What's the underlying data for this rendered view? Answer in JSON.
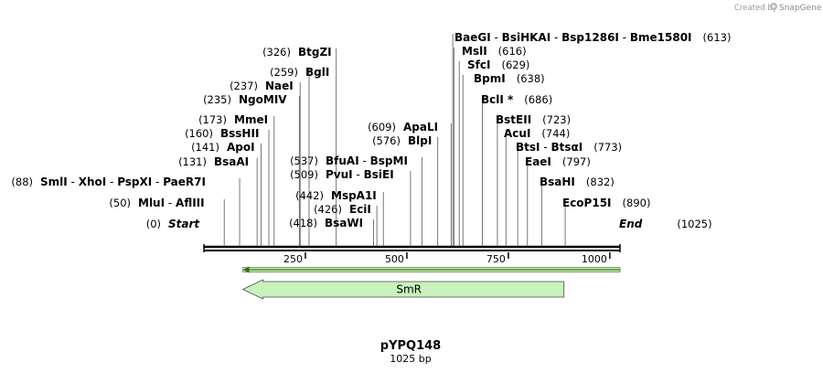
{
  "credit": {
    "prefix": "Created by",
    "brand": "SnapGene"
  },
  "plasmid": {
    "name": "pYPQ148",
    "length_label": "1025 bp",
    "length": 1025
  },
  "ruler": {
    "ticks": [
      250,
      500,
      750,
      1000
    ]
  },
  "sites": [
    {
      "id": "start",
      "pos": 0,
      "pos_label": "(0)",
      "names": [
        "Start"
      ],
      "italic": true
    },
    {
      "id": "mlui",
      "pos": 50,
      "pos_label": "(50)",
      "names": [
        "MluI",
        "AflIII"
      ]
    },
    {
      "id": "smli",
      "pos": 88,
      "pos_label": "(88)",
      "names": [
        "SmlI",
        "XhoI",
        "PspXI",
        "PaeR7I"
      ]
    },
    {
      "id": "bsaai",
      "pos": 131,
      "pos_label": "(131)",
      "names": [
        "BsaAI"
      ]
    },
    {
      "id": "apoi",
      "pos": 141,
      "pos_label": "(141)",
      "names": [
        "ApoI"
      ]
    },
    {
      "id": "bsshii",
      "pos": 160,
      "pos_label": "(160)",
      "names": [
        "BssHII"
      ]
    },
    {
      "id": "mmei",
      "pos": 173,
      "pos_label": "(173)",
      "names": [
        "MmeI"
      ]
    },
    {
      "id": "ngomiv",
      "pos": 235,
      "pos_label": "(235)",
      "names": [
        "NgoMIV"
      ]
    },
    {
      "id": "naei",
      "pos": 237,
      "pos_label": "(237)",
      "names": [
        "NaeI"
      ]
    },
    {
      "id": "bgli",
      "pos": 259,
      "pos_label": "(259)",
      "names": [
        "BglI"
      ]
    },
    {
      "id": "btgzi",
      "pos": 326,
      "pos_label": "(326)",
      "names": [
        "BtgZI"
      ]
    },
    {
      "id": "bsawi",
      "pos": 418,
      "pos_label": "(418)",
      "names": [
        "BsaWI"
      ]
    },
    {
      "id": "ecii",
      "pos": 426,
      "pos_label": "(426)",
      "names": [
        "EciI"
      ]
    },
    {
      "id": "mspa1i",
      "pos": 442,
      "pos_label": "(442)",
      "names": [
        "MspA1I"
      ]
    },
    {
      "id": "pvui",
      "pos": 509,
      "pos_label": "(509)",
      "names": [
        "PvuI",
        "BsiEI"
      ]
    },
    {
      "id": "bfuai",
      "pos": 537,
      "pos_label": "(537)",
      "names": [
        "BfuAI",
        "BspMI"
      ]
    },
    {
      "id": "blpi",
      "pos": 576,
      "pos_label": "(576)",
      "names": [
        "BlpI"
      ]
    },
    {
      "id": "apali",
      "pos": 609,
      "pos_label": "(609)",
      "names": [
        "ApaLI"
      ]
    },
    {
      "id": "baegi",
      "pos": 613,
      "pos_label": "(613)",
      "names": [
        "BaeGI",
        "BsiHKAI",
        "Bsp1286I",
        "Bme1580I"
      ]
    },
    {
      "id": "msli",
      "pos": 616,
      "pos_label": "(616)",
      "names": [
        "MslI"
      ]
    },
    {
      "id": "sfci",
      "pos": 629,
      "pos_label": "(629)",
      "names": [
        "SfcI"
      ]
    },
    {
      "id": "bpmi",
      "pos": 638,
      "pos_label": "(638)",
      "names": [
        "BpmI"
      ]
    },
    {
      "id": "bcli",
      "pos": 686,
      "pos_label": "(686)",
      "names": [
        "BclI *"
      ]
    },
    {
      "id": "bsteii",
      "pos": 723,
      "pos_label": "(723)",
      "names": [
        "BstEII"
      ]
    },
    {
      "id": "acui",
      "pos": 744,
      "pos_label": "(744)",
      "names": [
        "AcuI"
      ]
    },
    {
      "id": "btsi",
      "pos": 773,
      "pos_label": "(773)",
      "names": [
        "BtsI",
        "BtsαI"
      ]
    },
    {
      "id": "eaei",
      "pos": 797,
      "pos_label": "(797)",
      "names": [
        "EaeI"
      ]
    },
    {
      "id": "bsahi",
      "pos": 832,
      "pos_label": "(832)",
      "names": [
        "BsaHI"
      ]
    },
    {
      "id": "ecop15i",
      "pos": 890,
      "pos_label": "(890)",
      "names": [
        "EcoP15I"
      ]
    },
    {
      "id": "end",
      "pos": 1025,
      "pos_label": "(1025)",
      "names": [
        "End"
      ],
      "italic": true
    }
  ],
  "features": [
    {
      "name": "primer-bar",
      "label": "",
      "start": 96,
      "end": 1025,
      "direction": "left",
      "color": "#c9f2bc",
      "style": "primer"
    },
    {
      "name": "smr",
      "label": "SmR",
      "start": 96,
      "end": 887,
      "direction": "left",
      "color": "#c9f2bc",
      "style": "gene"
    }
  ]
}
